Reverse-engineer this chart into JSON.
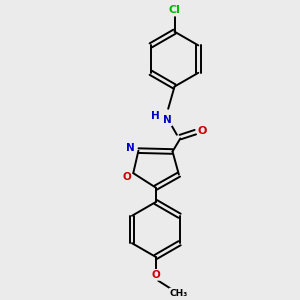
{
  "background_color": "#ebebeb",
  "bond_color": "#000000",
  "bond_width": 1.4,
  "atom_colors": {
    "C": "#000000",
    "N": "#0000cc",
    "O": "#cc0000",
    "Cl": "#00bb00",
    "H": "#4488aa"
  },
  "figsize": [
    3.0,
    3.0
  ],
  "dpi": 100
}
